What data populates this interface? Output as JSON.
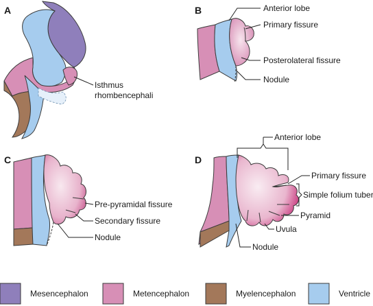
{
  "colors": {
    "mesencephalon": "#8f7fbb",
    "metencephalon": "#d78fb6",
    "myelencephalon": "#a3785a",
    "ventricle": "#a6ccee",
    "cerebellum_light": "#f6e3ec",
    "cerebellum_dark": "#c9377f",
    "fissure_line": "#b01f6a"
  },
  "panels": {
    "a": {
      "letter": "A",
      "labels": {
        "isthmus_line1": "Isthmus",
        "isthmus_line2": "rhombencephali"
      }
    },
    "b": {
      "letter": "B",
      "labels": {
        "anterior_lobe": "Anterior lobe",
        "primary_fissure": "Primary fissure",
        "posterolateral_fissure": "Posterolateral fissure",
        "nodule": "Nodule"
      }
    },
    "c": {
      "letter": "C",
      "labels": {
        "prepyramidal_fissure": "Pre-pyramidal fissure",
        "secondary_fissure": "Secondary fissure",
        "nodule": "Nodule"
      }
    },
    "d": {
      "letter": "D",
      "labels": {
        "anterior_lobe": "Anterior lobe",
        "primary_fissure": "Primary fissure",
        "simple_folium_tuber": "Simple folium tuber",
        "pyramid": "Pyramid",
        "uvula": "Uvula",
        "nodule": "Nodule"
      }
    }
  },
  "legend": [
    {
      "key": "mesencephalon",
      "label": "Mesencephalon"
    },
    {
      "key": "metencephalon",
      "label": "Metencephalon"
    },
    {
      "key": "myelencephalon",
      "label": "Myelencephalon"
    },
    {
      "key": "ventricle",
      "label": "Ventricle"
    }
  ]
}
